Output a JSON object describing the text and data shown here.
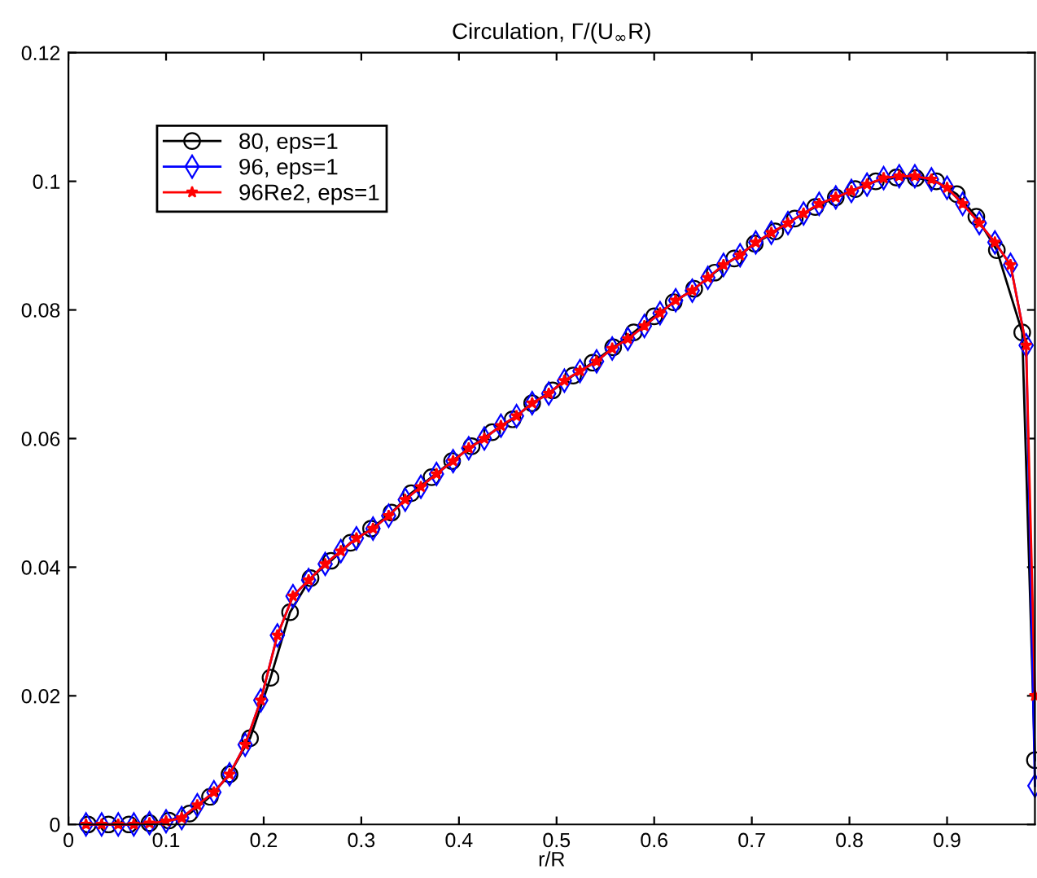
{
  "chart_data": {
    "type": "line",
    "title": "Circulation, Γ/(U$_{∞}$R)",
    "xlabel": "r/R",
    "xlim": [
      0,
      0.99
    ],
    "xticks": [
      0,
      0.1,
      0.2,
      0.3,
      0.4,
      0.5,
      0.6,
      0.7,
      0.8,
      0.9
    ],
    "ylim": [
      0,
      0.12
    ],
    "yticks": [
      0,
      0.02,
      0.04,
      0.06,
      0.08,
      0.1,
      0.12
    ],
    "grid": false,
    "legend": "top left",
    "series": [
      {
        "name": "80, eps=1",
        "color": "#000000",
        "marker": "circle",
        "x": [
          0.02,
          0.041,
          0.062,
          0.083,
          0.103,
          0.124,
          0.145,
          0.165,
          0.186,
          0.207,
          0.227,
          0.248,
          0.269,
          0.289,
          0.31,
          0.331,
          0.351,
          0.372,
          0.393,
          0.413,
          0.434,
          0.455,
          0.475,
          0.496,
          0.517,
          0.537,
          0.558,
          0.579,
          0.6,
          0.62,
          0.641,
          0.662,
          0.682,
          0.703,
          0.724,
          0.744,
          0.765,
          0.786,
          0.806,
          0.827,
          0.848,
          0.868,
          0.889,
          0.91,
          0.93,
          0.951,
          0.977,
          0.99
        ],
        "values": [
          0,
          0,
          0,
          0.0002,
          0.0006,
          0.0017,
          0.0043,
          0.0078,
          0.0134,
          0.0228,
          0.033,
          0.0383,
          0.041,
          0.0438,
          0.046,
          0.0485,
          0.0515,
          0.054,
          0.0565,
          0.0588,
          0.061,
          0.063,
          0.0655,
          0.0675,
          0.0698,
          0.0718,
          0.0742,
          0.0765,
          0.079,
          0.0812,
          0.0833,
          0.0858,
          0.088,
          0.0903,
          0.0922,
          0.0942,
          0.096,
          0.0975,
          0.0988,
          0.1,
          0.1006,
          0.1005,
          0.1,
          0.098,
          0.0945,
          0.0893,
          0.0765,
          0.01
        ]
      },
      {
        "name": "96, eps=1",
        "color": "#0000ff",
        "marker": "diamond",
        "x": [
          0.018,
          0.034,
          0.051,
          0.067,
          0.083,
          0.1,
          0.116,
          0.132,
          0.149,
          0.165,
          0.181,
          0.197,
          0.214,
          0.23,
          0.246,
          0.263,
          0.279,
          0.295,
          0.312,
          0.328,
          0.345,
          0.361,
          0.377,
          0.394,
          0.41,
          0.426,
          0.443,
          0.459,
          0.475,
          0.492,
          0.508,
          0.524,
          0.541,
          0.557,
          0.573,
          0.59,
          0.606,
          0.622,
          0.639,
          0.655,
          0.671,
          0.688,
          0.704,
          0.72,
          0.737,
          0.753,
          0.769,
          0.786,
          0.802,
          0.818,
          0.835,
          0.851,
          0.867,
          0.884,
          0.9,
          0.916,
          0.933,
          0.949,
          0.965,
          0.981,
          0.99
        ],
        "values": [
          0,
          0,
          0,
          0,
          0.0002,
          0.0005,
          0.001,
          0.003,
          0.005,
          0.0078,
          0.0124,
          0.0193,
          0.0294,
          0.0355,
          0.038,
          0.0405,
          0.0425,
          0.0445,
          0.046,
          0.048,
          0.0505,
          0.0525,
          0.0545,
          0.0565,
          0.0585,
          0.06,
          0.062,
          0.0635,
          0.0655,
          0.067,
          0.069,
          0.0705,
          0.072,
          0.074,
          0.0755,
          0.0775,
          0.0795,
          0.0815,
          0.083,
          0.085,
          0.087,
          0.0885,
          0.0905,
          0.092,
          0.0935,
          0.095,
          0.0965,
          0.0975,
          0.0985,
          0.0995,
          0.1005,
          0.1008,
          0.1008,
          0.1003,
          0.099,
          0.0965,
          0.0935,
          0.0905,
          0.087,
          0.0745,
          0.006
        ]
      },
      {
        "name": "96Re2, eps=1",
        "color": "#ff0000",
        "marker": "star",
        "x": [
          0.018,
          0.034,
          0.051,
          0.067,
          0.083,
          0.1,
          0.116,
          0.132,
          0.149,
          0.165,
          0.181,
          0.197,
          0.214,
          0.23,
          0.246,
          0.263,
          0.279,
          0.295,
          0.312,
          0.328,
          0.345,
          0.361,
          0.377,
          0.394,
          0.41,
          0.426,
          0.443,
          0.459,
          0.475,
          0.492,
          0.508,
          0.524,
          0.541,
          0.557,
          0.573,
          0.59,
          0.606,
          0.622,
          0.639,
          0.655,
          0.671,
          0.688,
          0.704,
          0.72,
          0.737,
          0.753,
          0.769,
          0.786,
          0.802,
          0.818,
          0.835,
          0.851,
          0.867,
          0.884,
          0.9,
          0.916,
          0.933,
          0.949,
          0.965,
          0.981,
          0.99
        ],
        "values": [
          0,
          0,
          0,
          0,
          0.0002,
          0.0005,
          0.001,
          0.003,
          0.005,
          0.0078,
          0.0124,
          0.0193,
          0.0294,
          0.0355,
          0.038,
          0.0405,
          0.0425,
          0.0445,
          0.046,
          0.048,
          0.0505,
          0.0525,
          0.0545,
          0.0565,
          0.0585,
          0.06,
          0.062,
          0.0635,
          0.0655,
          0.067,
          0.069,
          0.0705,
          0.072,
          0.074,
          0.0755,
          0.0775,
          0.0795,
          0.0815,
          0.083,
          0.085,
          0.087,
          0.0885,
          0.0905,
          0.092,
          0.0935,
          0.095,
          0.0965,
          0.0975,
          0.0985,
          0.0995,
          0.1005,
          0.1008,
          0.1008,
          0.1003,
          0.099,
          0.0965,
          0.0935,
          0.0905,
          0.087,
          0.0745,
          0.02
        ]
      }
    ]
  }
}
